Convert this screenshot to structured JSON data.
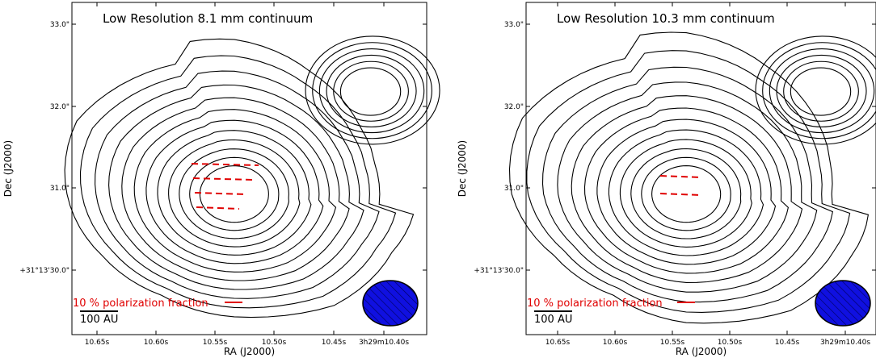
{
  "colors": {
    "contour": "#000000",
    "vector": "#e00000",
    "beam_fill": "#1010e0",
    "beam_hatch": "#000060"
  },
  "chart_data": [
    {
      "type": "contour",
      "title": "Low Resolution 8.1 mm continuum",
      "xlabel": "RA (J2000)",
      "ylabel": "Dec (J2000)",
      "x_ticks": [
        "10.65s",
        "10.60s",
        "10.55s",
        "10.50s",
        "10.45s",
        "3h29m10.40s"
      ],
      "y_ticks": [
        "+31°13'30.0\"",
        "31.0\"",
        "32.0\"",
        "33.0\""
      ],
      "x_range_s": [
        10.675,
        10.38
      ],
      "y_range_arcsec": [
        29.3,
        33.2
      ],
      "components": [
        {
          "name": "main",
          "ra_s": 10.54,
          "dec_arcsec": 30.95,
          "contour_levels": 12
        },
        {
          "name": "secondary",
          "ra_s": 10.427,
          "dec_arcsec": 32.15,
          "contour_levels": 6
        }
      ],
      "vector_rows": 4,
      "legend": "10 % polarization fraction",
      "scale_bar": "100 AU"
    },
    {
      "type": "contour",
      "title": "Low Resolution 10.3 mm continuum",
      "xlabel": "RA (J2000)",
      "ylabel": "Dec (J2000)",
      "x_ticks": [
        "10.65s",
        "10.60s",
        "10.55s",
        "10.50s",
        "10.45s",
        "3h29m10.40s"
      ],
      "y_ticks": [
        "+31°13'30.0\"",
        "31.0\"",
        "32.0\"",
        "33.0\""
      ],
      "x_range_s": [
        10.675,
        10.38
      ],
      "y_range_arcsec": [
        29.3,
        33.2
      ],
      "components": [
        {
          "name": "main",
          "ra_s": 10.54,
          "dec_arcsec": 30.95,
          "contour_levels": 12
        },
        {
          "name": "secondary",
          "ra_s": 10.427,
          "dec_arcsec": 32.15,
          "contour_levels": 6
        }
      ],
      "vector_rows": 2,
      "legend": "10 % polarization fraction",
      "scale_bar": "100 AU"
    }
  ]
}
